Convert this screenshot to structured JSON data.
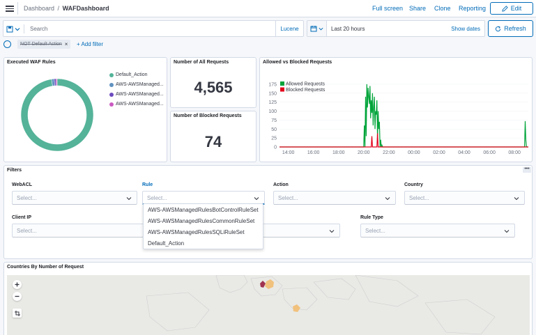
{
  "breadcrumb": {
    "root": "Dashboard",
    "separator": "/",
    "current": "WAFDashboard"
  },
  "top_nav": {
    "full_screen": "Full screen",
    "share": "Share",
    "clone": "Clone",
    "reporting": "Reporting",
    "edit": "Edit"
  },
  "query": {
    "placeholder": "Search",
    "language": "Lucene"
  },
  "time": {
    "range": "Last 20 hours",
    "show_dates": "Show dates",
    "refresh": "Refresh"
  },
  "filters": {
    "pill": "NOT Default Action",
    "add": "+ Add filter"
  },
  "panels": {
    "rules": {
      "title": "Executed WAF Rules",
      "legend": [
        {
          "label": "Default_Action",
          "color": "#54b399"
        },
        {
          "label": "AWS-AWSManaged...",
          "color": "#6092c0"
        },
        {
          "label": "AWS-AWSManaged...",
          "color": "#6c4bbf"
        },
        {
          "label": "AWS-AWSManaged...",
          "color": "#ca5ac0"
        }
      ],
      "slices": [
        0.975,
        0.012,
        0.008,
        0.005
      ]
    },
    "all_requests": {
      "title": "Number of All Requests",
      "value": "4,565"
    },
    "blocked_requests": {
      "title": "Number of Blocked Requests",
      "value": "74"
    },
    "allowed_vs_blocked": {
      "title": "Allowed vs Blocked Requests"
    },
    "filters_panel": {
      "title": "Filters",
      "controls": [
        {
          "label": "WebACL",
          "placeholder": "Select..."
        },
        {
          "label": "Rule",
          "placeholder": "Select..."
        },
        {
          "label": "Action",
          "placeholder": "Select..."
        },
        {
          "label": "Country",
          "placeholder": "Select..."
        },
        {
          "label": "Client IP",
          "placeholder": "Select..."
        },
        {
          "label": "Rule Type",
          "placeholder": "Select..."
        }
      ],
      "dropdown": [
        "AWS-AWSManagedRulesBotControlRuleSet",
        "AWS-AWSManagedRulesCommonRuleSet",
        "AWS-AWSManagedRulesSQLiRuleSet",
        "Default_Action"
      ]
    },
    "countries": {
      "title": "Countries By Number of Request"
    }
  },
  "chart_data": {
    "type": "line",
    "title": "Allowed vs Blocked Requests",
    "legend_position": "top-left",
    "x_ticks": [
      "14:00",
      "16:00",
      "18:00",
      "20:00",
      "22:00",
      "00:00",
      "02:00",
      "04:00",
      "06:00",
      "08:00"
    ],
    "y_ticks": [
      0,
      25,
      50,
      75,
      100,
      125,
      150,
      175
    ],
    "ylim": [
      0,
      200
    ],
    "xlim": [
      13.3,
      33.1
    ],
    "series": [
      {
        "name": "Allowed Requests",
        "color": "#00a43a",
        "x": [
          13.3,
          20.0,
          20.05,
          20.1,
          20.15,
          20.2,
          20.25,
          20.3,
          20.35,
          20.4,
          20.45,
          20.5,
          20.55,
          20.6,
          20.65,
          20.7,
          20.75,
          20.8,
          20.85,
          20.9,
          20.95,
          21.0,
          21.05,
          21.1,
          21.15,
          21.2,
          21.25,
          21.3,
          21.35,
          21.4,
          21.45,
          21.5,
          32.8,
          32.85,
          32.9,
          32.95,
          33.1
        ],
        "y": [
          0,
          0,
          60,
          0,
          140,
          30,
          175,
          110,
          165,
          140,
          120,
          170,
          80,
          130,
          95,
          150,
          60,
          110,
          140,
          50,
          100,
          90,
          130,
          20,
          100,
          50,
          70,
          0,
          20,
          0,
          5,
          0,
          0,
          72,
          20,
          0,
          0
        ]
      },
      {
        "name": "Blocked Requests",
        "color": "#e3001b",
        "x": [
          13.3,
          20.6,
          20.65,
          20.7,
          21.05,
          21.1,
          21.15,
          33.1
        ],
        "y": [
          0,
          0,
          30,
          0,
          0,
          38,
          0,
          0
        ]
      }
    ]
  }
}
